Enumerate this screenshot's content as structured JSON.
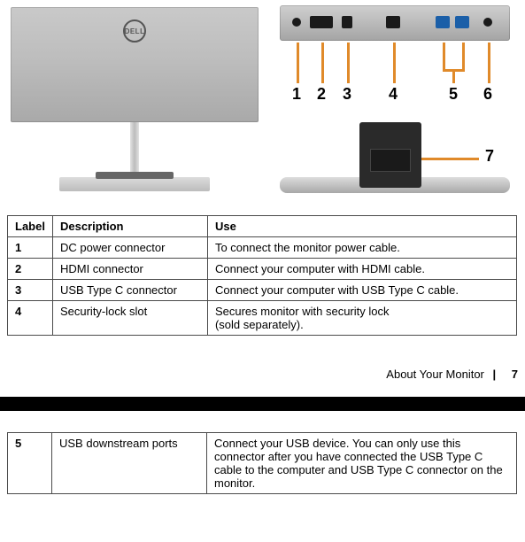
{
  "logo_text": "DELL",
  "callout_color": "#e08a2a",
  "numbers": {
    "n1": "1",
    "n2": "2",
    "n3": "3",
    "n4": "4",
    "n5": "5",
    "n6": "6",
    "n7": "7"
  },
  "table_headers": {
    "label": "Label",
    "description": "Description",
    "use": "Use"
  },
  "table1": [
    {
      "label": "1",
      "desc": "DC power connector",
      "use": "To connect the monitor power cable."
    },
    {
      "label": "2",
      "desc": "HDMI connector",
      "use": "Connect your computer with HDMI cable."
    },
    {
      "label": "3",
      "desc": "USB Type C connector",
      "use": "Connect your computer with USB Type C cable."
    },
    {
      "label": "4",
      "desc": "Security-lock slot",
      "use": "Secures monitor with security lock\n(sold separately)."
    }
  ],
  "footer": {
    "section": "About Your Monitor",
    "divider": "|",
    "page": "7"
  },
  "table2": [
    {
      "label": "5",
      "desc": "USB downstream ports",
      "use": "Connect your USB device. You can only use this connector after you have connected the USB Type C cable to the computer and USB Type C connector on the monitor."
    }
  ]
}
